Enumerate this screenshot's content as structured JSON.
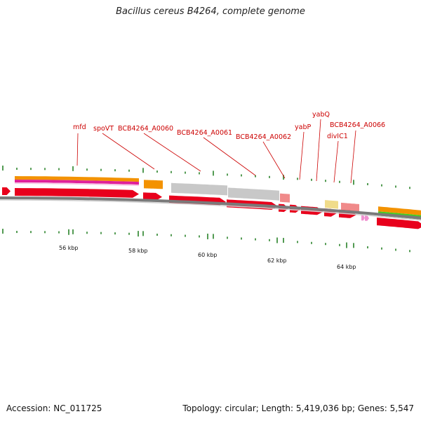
{
  "title": "Bacillus cereus B4264, complete genome",
  "footer": {
    "accession": "Accession: NC_011725",
    "summary": "Topology: circular; Length: 5,419,036 bp; Genes: 5,547"
  },
  "gene_labels": [
    "mfd",
    "spoVT",
    "BCB4264_A0060",
    "BCB4264_A0061",
    "BCB4264_A0062",
    "yabP",
    "yabQ",
    "divIC1",
    "BCB4264_A0066"
  ],
  "ticks": [
    "56 kbp",
    "58 kbp",
    "60 kbp",
    "62 kbp",
    "64 kbp"
  ],
  "colors": {
    "cds": "#e8001c",
    "gene_orange": "#f39200",
    "magenta": "#e0209a",
    "gray": "#c8c8c8",
    "pink": "#f08a8a",
    "yellow": "#f0dc8a",
    "green": "#44cc22",
    "label": "#cc0000",
    "tick": "#1a7a1a",
    "backbone": "#7a7a7a"
  }
}
